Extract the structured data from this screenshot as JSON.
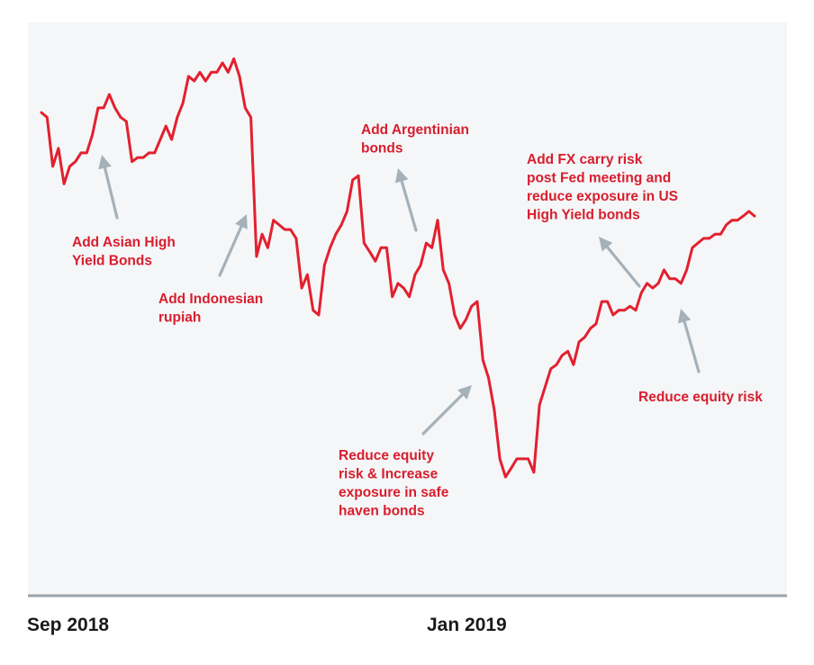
{
  "chart_data": {
    "type": "line",
    "title": "",
    "xlabel": "",
    "ylabel": "",
    "grid": false,
    "legend": "none",
    "x_tick_labels": [
      "Sep 2018",
      "Jan 2019"
    ],
    "ylim": [
      0,
      100
    ],
    "series": [
      {
        "values": [
          84.6,
          83.8,
          75.4,
          78.5,
          72.4,
          75.4,
          76.2,
          77.7,
          77.7,
          80.8,
          85.4,
          85.4,
          87.7,
          85.4,
          83.8,
          83.1,
          76.2,
          76.9,
          76.9,
          77.7,
          77.7,
          80.0,
          82.3,
          80.0,
          83.8,
          86.2,
          90.8,
          90.0,
          91.5,
          90.0,
          91.5,
          91.5,
          93.1,
          91.5,
          93.8,
          90.8,
          85.4,
          83.8,
          60.0,
          63.8,
          61.5,
          66.2,
          65.4,
          64.6,
          64.6,
          63.1,
          54.6,
          56.9,
          50.8,
          50.0,
          58.5,
          61.5,
          63.8,
          65.4,
          67.7,
          73.1,
          73.8,
          62.3,
          60.8,
          59.2,
          61.5,
          61.5,
          53.1,
          55.4,
          54.6,
          53.1,
          56.9,
          58.5,
          62.3,
          61.5,
          66.2,
          57.7,
          55.4,
          50.0,
          47.7,
          49.2,
          51.5,
          52.3,
          42.3,
          39.2,
          33.8,
          25.4,
          22.3,
          23.8,
          25.4,
          25.4,
          25.4,
          23.1,
          34.6,
          37.7,
          40.8,
          41.5,
          43.1,
          43.8,
          41.5,
          45.4,
          46.2,
          47.7,
          48.5,
          52.3,
          52.3,
          50.0,
          50.8,
          50.8,
          51.5,
          50.8,
          53.8,
          55.4,
          54.6,
          55.4,
          57.7,
          56.2,
          56.2,
          55.4,
          57.7,
          61.5,
          62.3,
          63.1,
          63.1,
          63.8,
          63.8,
          65.4,
          66.2,
          66.2,
          66.9,
          67.7,
          66.9
        ]
      }
    ],
    "annotations": [
      {
        "text": "Add Asian High\nYield Bonds"
      },
      {
        "text": "Add Indonesian\nrupiah"
      },
      {
        "text": "Add Argentinian\nbonds"
      },
      {
        "text": "Reduce equity\nrisk & Increase\nexposure in safe\nhaven bonds"
      },
      {
        "text": "Add FX carry risk\npost Fed meeting and\nreduce exposure in US\nHigh Yield bonds"
      },
      {
        "text": "Reduce equity risk"
      }
    ],
    "colors": {
      "line": "#e2202f",
      "annotation_text": "#d71e2e",
      "arrow": "#a5b1b9",
      "plot_background": "#f5f6f7",
      "axis": "#9aa4ab",
      "tick_label": "#1a1a1a"
    }
  }
}
